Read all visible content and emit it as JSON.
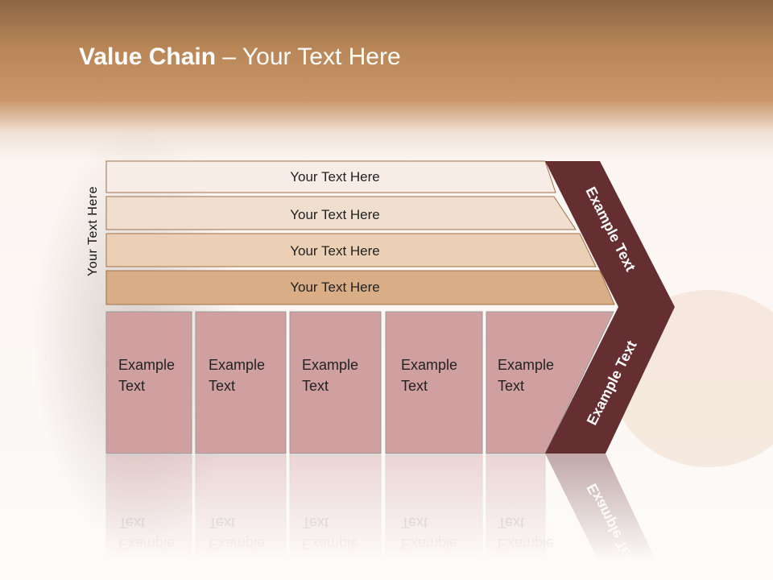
{
  "slide": {
    "title_bold": "Value Chain",
    "title_rest": " – Your Text Here",
    "side_label": "Your Text Here",
    "bars": [
      {
        "label": "Your Text Here",
        "color": "#f7ede6"
      },
      {
        "label": "Your Text Here",
        "color": "#f0dfcf"
      },
      {
        "label": "Your Text Here",
        "color": "#ebd0b6"
      },
      {
        "label": "Your Text Here",
        "color": "#d9ad86"
      }
    ],
    "columns": [
      {
        "line1": "Example",
        "line2": "Text"
      },
      {
        "line1": "Example",
        "line2": "Text"
      },
      {
        "line1": "Example",
        "line2": "Text"
      },
      {
        "line1": "Example",
        "line2": "Text"
      },
      {
        "line1": "Example",
        "line2": "Text"
      }
    ],
    "chevron": {
      "upper": "Example Text",
      "lower": "Example Text",
      "color": "#652f31"
    },
    "column_color": "#d09fa0"
  }
}
